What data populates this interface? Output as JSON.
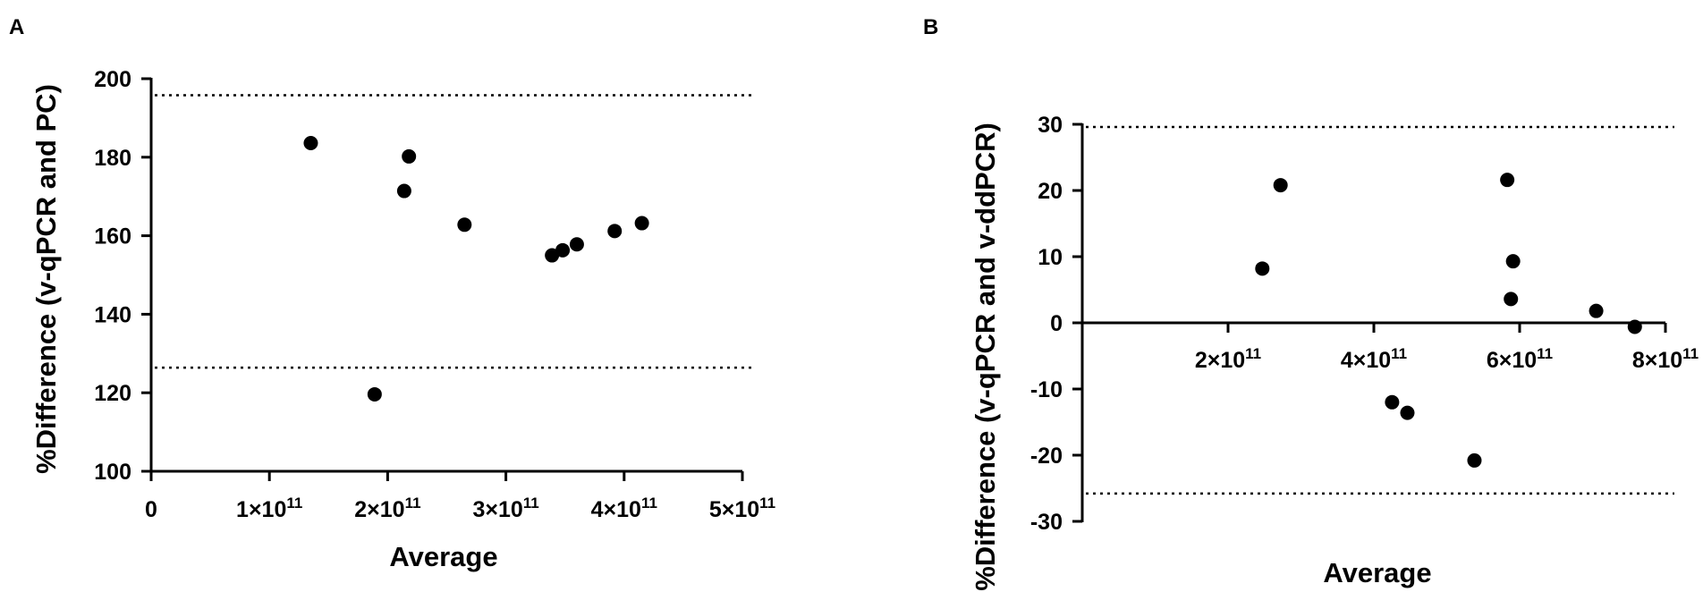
{
  "chart_data": [
    {
      "type": "scatter",
      "panel_label": "A",
      "title": "",
      "xlabel": "Average",
      "ylabel": "%Difference (v-qPCR and PC)",
      "xlim": [
        0,
        500000000000
      ],
      "ylim": [
        100,
        200
      ],
      "grid": false,
      "x_ticks": [
        {
          "value": 0,
          "label": "0"
        },
        {
          "value": 100000000000,
          "label": "1×10",
          "exp": "11"
        },
        {
          "value": 200000000000,
          "label": "2×10",
          "exp": "11"
        },
        {
          "value": 300000000000,
          "label": "3×10",
          "exp": "11"
        },
        {
          "value": 400000000000,
          "label": "4×10",
          "exp": "11"
        },
        {
          "value": 500000000000,
          "label": "5×10",
          "exp": "11"
        }
      ],
      "y_ticks": [
        {
          "value": 100,
          "label": "100"
        },
        {
          "value": 120,
          "label": "120"
        },
        {
          "value": 140,
          "label": "140"
        },
        {
          "value": 160,
          "label": "160"
        },
        {
          "value": 180,
          "label": "180"
        },
        {
          "value": 200,
          "label": "200"
        }
      ],
      "limit_lines": [
        195.8,
        126.4
      ],
      "points": [
        {
          "x": 135000000000,
          "y": 183.6
        },
        {
          "x": 189000000000,
          "y": 119.6
        },
        {
          "x": 214000000000,
          "y": 171.4
        },
        {
          "x": 218000000000,
          "y": 180.2
        },
        {
          "x": 265000000000,
          "y": 162.8
        },
        {
          "x": 339000000000,
          "y": 155.0
        },
        {
          "x": 348000000000,
          "y": 156.3
        },
        {
          "x": 360000000000,
          "y": 157.8
        },
        {
          "x": 392000000000,
          "y": 161.2
        },
        {
          "x": 415000000000,
          "y": 163.2
        }
      ]
    },
    {
      "type": "scatter",
      "panel_label": "B",
      "title": "",
      "xlabel": "Average",
      "ylabel": "%Difference (v-qPCR and v-ddPCR)",
      "xlim": [
        0,
        800000000000
      ],
      "ylim": [
        -30,
        30
      ],
      "grid": false,
      "x_ticks": [
        {
          "value": 200000000000,
          "label": "2×10",
          "exp": "11"
        },
        {
          "value": 400000000000,
          "label": "4×10",
          "exp": "11"
        },
        {
          "value": 600000000000,
          "label": "6×10",
          "exp": "11"
        },
        {
          "value": 800000000000,
          "label": "8×10",
          "exp": "11"
        }
      ],
      "y_ticks": [
        {
          "value": -30,
          "label": "-30"
        },
        {
          "value": -20,
          "label": "-20"
        },
        {
          "value": -10,
          "label": "-10"
        },
        {
          "value": 0,
          "label": "0"
        },
        {
          "value": 10,
          "label": "10"
        },
        {
          "value": 20,
          "label": "20"
        },
        {
          "value": 30,
          "label": "30"
        }
      ],
      "limit_lines": [
        29.6,
        -25.8
      ],
      "points": [
        {
          "x": 247000000000,
          "y": 8.2
        },
        {
          "x": 272000000000,
          "y": 20.8
        },
        {
          "x": 425000000000,
          "y": -12.0
        },
        {
          "x": 446000000000,
          "y": -13.6
        },
        {
          "x": 538000000000,
          "y": -20.8
        },
        {
          "x": 583000000000,
          "y": 21.6
        },
        {
          "x": 588000000000,
          "y": 3.6
        },
        {
          "x": 591000000000,
          "y": 9.3
        },
        {
          "x": 705000000000,
          "y": 1.8
        },
        {
          "x": 758000000000,
          "y": -0.6
        }
      ]
    }
  ]
}
